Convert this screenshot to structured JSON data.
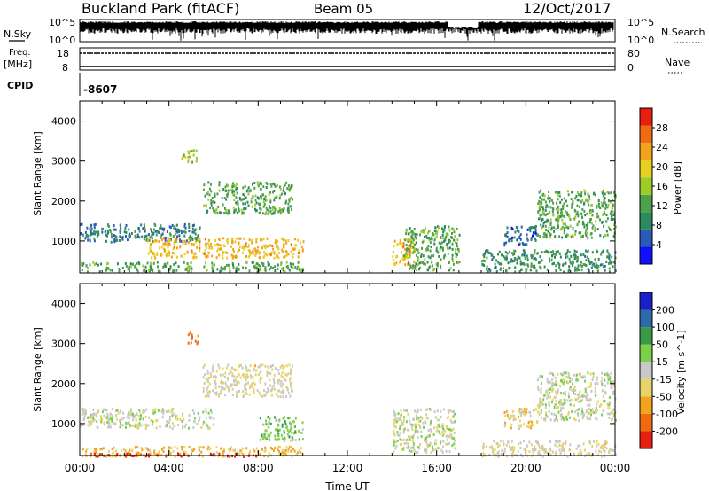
{
  "header": {
    "station": "Buckland Park (fitACF)",
    "beam": "Beam 05",
    "date": "12/Oct/2017"
  },
  "noise_panel": {
    "left_label": "N.Sky",
    "right_label": "N.Search",
    "left_ticks": [
      "10^5",
      "10^0"
    ],
    "right_ticks": [
      "10^5",
      "10^0"
    ]
  },
  "freq_panel": {
    "left_label_line1": "Freq.",
    "left_label_line2": "[MHz]",
    "right_label": "Nave",
    "left_ticks": [
      "18",
      "8"
    ],
    "right_ticks": [
      "80",
      "0"
    ]
  },
  "cpid_panel": {
    "label": "CPID",
    "value": "-8607"
  },
  "xaxis": {
    "title": "Time UT",
    "ticks": [
      "00:00",
      "04:00",
      "08:00",
      "12:00",
      "16:00",
      "20:00",
      "00:00"
    ]
  },
  "colors": {
    "power": [
      "#1010ff",
      "#2a5bb8",
      "#2d8a5c",
      "#4fa04a",
      "#9ccc2a",
      "#e6d020",
      "#f2a41c",
      "#f06a14",
      "#e81e10"
    ],
    "velocity": [
      "#e81e10",
      "#f06a14",
      "#f2a41c",
      "#e6d46a",
      "#c8c8c8",
      "#7cd048",
      "#3a9a48",
      "#2e6aa8",
      "#1a20c8"
    ]
  },
  "chart_data": [
    {
      "type": "heatmap",
      "title": "",
      "xlabel": "",
      "ylabel": "Slant Range [km]",
      "xlim": [
        "00:00",
        "24:00"
      ],
      "ylim": [
        200,
        4500
      ],
      "yticks": [
        "1000",
        "2000",
        "3000",
        "4000"
      ],
      "colorbar": {
        "label": "Power [dB]",
        "range": [
          0,
          32
        ],
        "tick_labels": [
          "4",
          "8",
          "12",
          "16",
          "20",
          "24",
          "28"
        ]
      },
      "regions": [
        {
          "t_start": 0.0,
          "t_end": 10.0,
          "range_start": 250,
          "range_end": 500,
          "value": 12
        },
        {
          "t_start": 0.0,
          "t_end": 5.5,
          "range_start": 1000,
          "range_end": 1450,
          "value": 8
        },
        {
          "t_start": 3.0,
          "t_end": 10.0,
          "range_start": 600,
          "range_end": 1100,
          "value": 22
        },
        {
          "t_start": 5.5,
          "t_end": 9.5,
          "range_start": 1700,
          "range_end": 2500,
          "value": 12
        },
        {
          "t_start": 4.5,
          "t_end": 5.3,
          "range_start": 3000,
          "range_end": 3300,
          "value": 16
        },
        {
          "t_start": 14.0,
          "t_end": 15.0,
          "range_start": 400,
          "range_end": 1100,
          "value": 22
        },
        {
          "t_start": 14.5,
          "t_end": 17.0,
          "range_start": 300,
          "range_end": 1400,
          "value": 12
        },
        {
          "t_start": 18.0,
          "t_end": 24.0,
          "range_start": 250,
          "range_end": 800,
          "value": 10
        },
        {
          "t_start": 19.0,
          "t_end": 20.5,
          "range_start": 900,
          "range_end": 1400,
          "value": 6
        },
        {
          "t_start": 20.5,
          "t_end": 24.0,
          "range_start": 1100,
          "range_end": 2300,
          "value": 12
        }
      ]
    },
    {
      "type": "heatmap",
      "title": "",
      "xlabel": "Time UT",
      "ylabel": "Slant Range [km]",
      "xlim": [
        "00:00",
        "24:00"
      ],
      "ylim": [
        200,
        4500
      ],
      "yticks": [
        "1000",
        "2000",
        "3000",
        "4000"
      ],
      "colorbar": {
        "label": "Velocity [m s^-1]",
        "range": [
          -250,
          250
        ],
        "tick_labels": [
          "200",
          "100",
          "50",
          "15",
          "-15",
          "-50",
          "-100",
          "-200"
        ]
      },
      "regions": [
        {
          "t_start": 0.0,
          "t_end": 10.0,
          "range_start": 200,
          "range_end": 450,
          "value": -80
        },
        {
          "t_start": 0.0,
          "t_end": 8.0,
          "range_start": 200,
          "range_end": 280,
          "value": -220
        },
        {
          "t_start": 0.0,
          "t_end": 6.0,
          "range_start": 900,
          "range_end": 1400,
          "value": 0
        },
        {
          "t_start": 8.0,
          "t_end": 10.0,
          "range_start": 600,
          "range_end": 1200,
          "value": 60
        },
        {
          "t_start": 5.5,
          "t_end": 9.5,
          "range_start": 1700,
          "range_end": 2500,
          "value": -30
        },
        {
          "t_start": 4.8,
          "t_end": 5.3,
          "range_start": 3000,
          "range_end": 3300,
          "value": -150
        },
        {
          "t_start": 14.0,
          "t_end": 16.8,
          "range_start": 300,
          "range_end": 1400,
          "value": 0
        },
        {
          "t_start": 19.0,
          "t_end": 20.5,
          "range_start": 900,
          "range_end": 1400,
          "value": -60
        },
        {
          "t_start": 18.0,
          "t_end": 24.0,
          "range_start": 200,
          "range_end": 600,
          "value": -30
        },
        {
          "t_start": 20.5,
          "t_end": 24.0,
          "range_start": 1100,
          "range_end": 2300,
          "value": 0
        }
      ]
    }
  ]
}
